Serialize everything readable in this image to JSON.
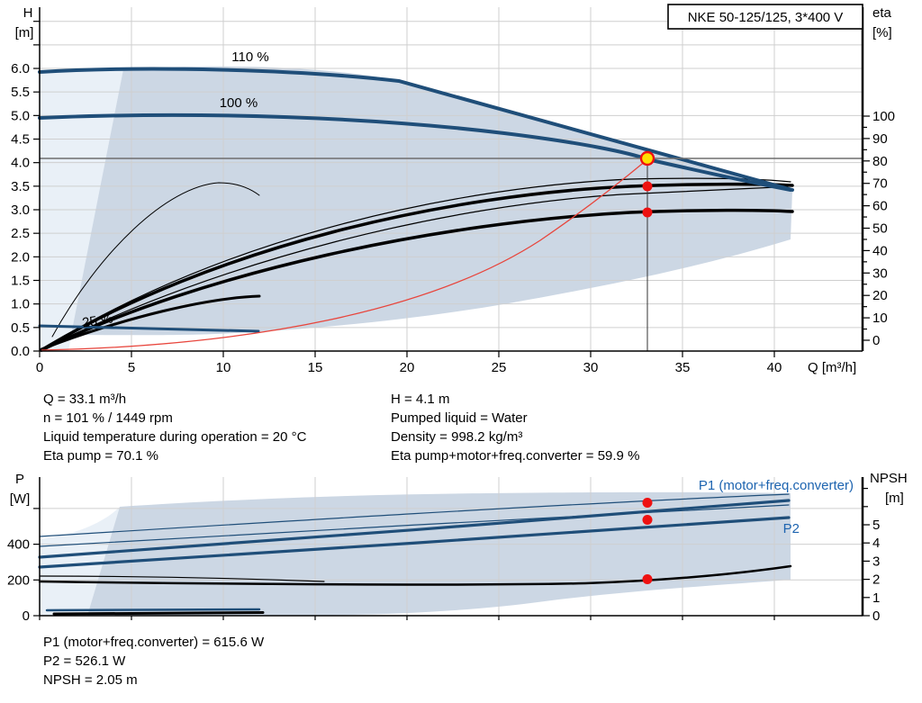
{
  "title_box": {
    "label": "NKE 50-125/125, 3*400 V"
  },
  "colors": {
    "curve_blue": "#1f4e79",
    "label_blue": "#1d64b0",
    "band_dark": "#ccd7e4",
    "band_light": "#e9f0f7",
    "red": "#e8453c",
    "dot_red": "#ee1111",
    "dot_yellow": "#ffe000",
    "grid": "#cfcfcf",
    "ref_gray": "#6e6e6e"
  },
  "top_chart": {
    "h_label": "H",
    "h_unit": "[m]",
    "eta_label": "eta",
    "eta_unit": "[%]",
    "q_label": "Q [m³/h]",
    "curve_labels": {
      "s110": "110 %",
      "s100": "100 %",
      "s25": "25 %"
    },
    "x_ticks": [
      [
        0,
        "0"
      ],
      [
        5,
        "5"
      ],
      [
        10,
        "10"
      ],
      [
        15,
        "15"
      ],
      [
        20,
        "20"
      ],
      [
        25,
        "25"
      ],
      [
        30,
        "30"
      ],
      [
        35,
        "35"
      ],
      [
        40,
        "40"
      ]
    ],
    "h_ticks": [
      [
        0,
        "0.0"
      ],
      [
        0.5,
        "0.5"
      ],
      [
        1,
        "1.0"
      ],
      [
        1.5,
        "1.5"
      ],
      [
        2,
        "2.0"
      ],
      [
        2.5,
        "2.5"
      ],
      [
        3,
        "3.0"
      ],
      [
        3.5,
        "3.5"
      ],
      [
        4,
        "4.0"
      ],
      [
        4.5,
        "4.5"
      ],
      [
        5,
        "5.0"
      ],
      [
        5.5,
        "5.5"
      ],
      [
        6,
        "6.0"
      ],
      [
        6.5,
        ""
      ],
      [
        7,
        ""
      ]
    ],
    "eta_ticks": [
      [
        0,
        "0"
      ],
      [
        5,
        ""
      ],
      [
        10,
        "10"
      ],
      [
        15,
        ""
      ],
      [
        20,
        "20"
      ],
      [
        25,
        ""
      ],
      [
        30,
        "30"
      ],
      [
        35,
        ""
      ],
      [
        40,
        "40"
      ],
      [
        45,
        ""
      ],
      [
        50,
        "50"
      ],
      [
        55,
        ""
      ],
      [
        60,
        "60"
      ],
      [
        65,
        ""
      ],
      [
        70,
        "70"
      ],
      [
        75,
        ""
      ],
      [
        80,
        "80"
      ],
      [
        85,
        ""
      ],
      [
        90,
        "90"
      ],
      [
        95,
        ""
      ],
      [
        100,
        "100"
      ]
    ],
    "h_grid": [
      0.5,
      1,
      1.5,
      2,
      2.5,
      3,
      3.5,
      4,
      4.5,
      5,
      5.5,
      6,
      6.5,
      7
    ],
    "x_grid": [
      5,
      10,
      15,
      20,
      25,
      30,
      35,
      40
    ]
  },
  "info_text": {
    "left_lines": [
      "Q = 33.1 m³/h",
      "n = 101 % / 1449 rpm",
      "Liquid temperature during operation = 20 °C",
      "Eta pump = 70.1 %"
    ],
    "right_lines": [
      "H = 4.1 m",
      "Pumped liquid = Water",
      "Density = 998.2 kg/m³",
      "Eta pump+motor+freq.converter = 59.9 %"
    ]
  },
  "lower_chart": {
    "p_label": "P",
    "p_unit": "[W]",
    "npsh_label": "NPSH",
    "npsh_unit": "[m]",
    "p1_curve_label": "P1 (motor+freq.converter)",
    "p2_curve_label": "P2",
    "p_ticks": [
      [
        0,
        "0"
      ],
      [
        200,
        "200"
      ],
      [
        400,
        "400"
      ],
      [
        600,
        ""
      ]
    ],
    "npsh_ticks": [
      [
        0,
        "0"
      ],
      [
        1,
        "1"
      ],
      [
        2,
        "2"
      ],
      [
        3,
        "3"
      ],
      [
        4,
        "4"
      ],
      [
        5,
        "5"
      ],
      [
        6,
        ""
      ],
      [
        7,
        ""
      ]
    ],
    "p_grid": [
      200,
      400,
      600
    ],
    "x_grid": [
      5,
      10,
      15,
      20,
      25,
      30,
      35,
      40
    ],
    "x_ticks": [
      0,
      5,
      10,
      15,
      20,
      25,
      30,
      35,
      40
    ]
  },
  "bottom_text": {
    "lines": [
      "P1 (motor+freq.converter) = 615.6 W",
      "P2 = 526.1 W",
      "NPSH = 2.05 m"
    ]
  },
  "chart_data": [
    {
      "type": "line",
      "title": "NKE 50-125/125, 3*400 V",
      "xlabel": "Q [m³/h]",
      "ylabel": "H [m]",
      "y2label": "eta [%]",
      "xlim": [
        0,
        44.8
      ],
      "ylim": [
        0,
        7.3
      ],
      "y2lim": [
        0,
        100
      ],
      "grid": true,
      "series": [
        {
          "name": "head_110%",
          "axis": "H",
          "points": [
            [
              0,
              5.9
            ],
            [
              5,
              6.0
            ],
            [
              10,
              6.07
            ],
            [
              15,
              6.03
            ],
            [
              19.6,
              5.73
            ],
            [
              25,
              5.14
            ],
            [
              30,
              4.6
            ],
            [
              35,
              4.07
            ],
            [
              41,
              3.42
            ]
          ]
        },
        {
          "name": "head_100%",
          "axis": "H",
          "points": [
            [
              0,
              4.95
            ],
            [
              10,
              5.05
            ],
            [
              15,
              5.03
            ],
            [
              20,
              4.88
            ],
            [
              25,
              4.66
            ],
            [
              30,
              4.36
            ],
            [
              33.1,
              4.07
            ],
            [
              37,
              3.78
            ],
            [
              41,
              3.42
            ]
          ]
        },
        {
          "name": "head_25%",
          "axis": "H",
          "points": [
            [
              0,
              0.54
            ],
            [
              4,
              0.52
            ],
            [
              8,
              0.48
            ],
            [
              11.9,
              0.42
            ]
          ]
        },
        {
          "name": "eta_pump",
          "axis": "eta",
          "points": [
            [
              0,
              0
            ],
            [
              5,
              26
            ],
            [
              10,
              45
            ],
            [
              15,
              56
            ],
            [
              20,
              63
            ],
            [
              25,
              67
            ],
            [
              30,
              69.5
            ],
            [
              33.1,
              70.1
            ],
            [
              37,
              70
            ],
            [
              41,
              69
            ]
          ]
        },
        {
          "name": "eta_pump_motor_freq_converter",
          "axis": "eta",
          "points": [
            [
              0,
              0
            ],
            [
              5,
              20
            ],
            [
              10,
              36
            ],
            [
              15,
              46
            ],
            [
              20,
              53
            ],
            [
              25,
              57
            ],
            [
              30,
              59.3
            ],
            [
              33.1,
              59.9
            ],
            [
              37,
              59
            ],
            [
              41,
              57.5
            ]
          ]
        },
        {
          "name": "affinity_line_red",
          "axis": "H",
          "points": [
            [
              0,
              0
            ],
            [
              10,
              0.37
            ],
            [
              15,
              0.84
            ],
            [
              20,
              1.5
            ],
            [
              25,
              2.34
            ],
            [
              30,
              3.37
            ],
            [
              33.1,
              4.1
            ]
          ]
        }
      ],
      "operating_point": {
        "Q": 33.1,
        "H": 4.1,
        "eta_pump": 70.1,
        "eta_total": 59.9
      },
      "shaded_region": "allowed operating envelope between min and max speed curves"
    },
    {
      "type": "line",
      "xlabel": "Q [m³/h]",
      "ylabel": "P [W]",
      "y2label": "NPSH [m]",
      "xlim": [
        0,
        44.8
      ],
      "ylim": [
        0,
        760
      ],
      "y2lim": [
        0,
        7.6
      ],
      "grid": true,
      "series": [
        {
          "name": "P1 (motor+freq.converter)",
          "axis": "P",
          "points": [
            [
              0,
              317
            ],
            [
              10,
              355
            ],
            [
              20,
              440
            ],
            [
              28,
              540
            ],
            [
              33.1,
              615.6
            ],
            [
              38,
              635
            ],
            [
              41,
              640
            ]
          ]
        },
        {
          "name": "P2",
          "axis": "P",
          "points": [
            [
              0,
              262
            ],
            [
              10,
              300
            ],
            [
              20,
              375
            ],
            [
              28,
              460
            ],
            [
              33.1,
              526.1
            ],
            [
              38,
              540
            ],
            [
              41,
              545
            ]
          ]
        },
        {
          "name": "NPSH",
          "axis": "NPSH",
          "points": [
            [
              0,
              1.85
            ],
            [
              10,
              1.75
            ],
            [
              20,
              1.7
            ],
            [
              28,
              1.85
            ],
            [
              33.1,
              2.05
            ],
            [
              38,
              2.4
            ],
            [
              41,
              2.6
            ]
          ]
        }
      ],
      "operating_point": {
        "Q": 33.1,
        "P1": 615.6,
        "P2": 526.1,
        "NPSH": 2.05
      }
    }
  ]
}
